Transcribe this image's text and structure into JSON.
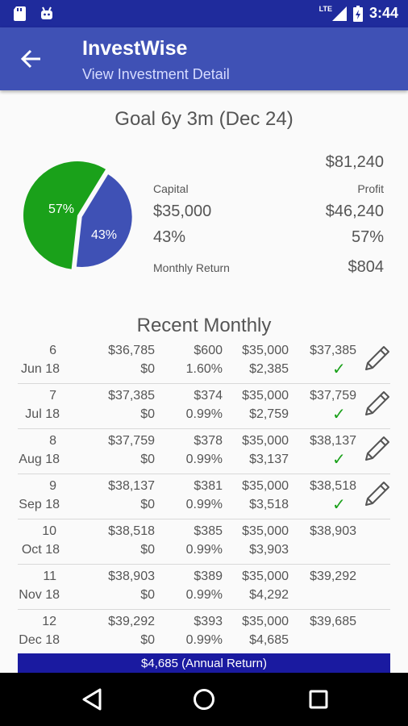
{
  "status_bar": {
    "time": "3:44",
    "network": "LTE"
  },
  "app_bar": {
    "title": "InvestWise",
    "subtitle": "View Investment Detail"
  },
  "summary": {
    "goal": "Goal 6y 3m (Dec 24)",
    "total": "$81,240",
    "capital_label": "Capital",
    "profit_label": "Profit",
    "capital_value": "$35,000",
    "profit_value": "$46,240",
    "capital_pct": "43%",
    "profit_pct": "57%",
    "monthly_return_label": "Monthly Return",
    "monthly_return_value": "$804",
    "pie": {
      "profit_label": "57%",
      "capital_label": "43%",
      "profit_color": "#1aa11a",
      "capital_color": "#3f51b5"
    }
  },
  "recent": {
    "title": "Recent Monthly",
    "rows": [
      {
        "num": "6",
        "month": "Jun 18",
        "start": "$36,785",
        "deposit": "$0",
        "interest": "$600",
        "rate": "1.60%",
        "capital": "$35,000",
        "profit": "$2,385",
        "end": "$37,385",
        "confirmed": true
      },
      {
        "num": "7",
        "month": "Jul 18",
        "start": "$37,385",
        "deposit": "$0",
        "interest": "$374",
        "rate": "0.99%",
        "capital": "$35,000",
        "profit": "$2,759",
        "end": "$37,759",
        "confirmed": true
      },
      {
        "num": "8",
        "month": "Aug 18",
        "start": "$37,759",
        "deposit": "$0",
        "interest": "$378",
        "rate": "0.99%",
        "capital": "$35,000",
        "profit": "$3,137",
        "end": "$38,137",
        "confirmed": true
      },
      {
        "num": "9",
        "month": "Sep 18",
        "start": "$38,137",
        "deposit": "$0",
        "interest": "$381",
        "rate": "0.99%",
        "capital": "$35,000",
        "profit": "$3,518",
        "end": "$38,518",
        "confirmed": true
      },
      {
        "num": "10",
        "month": "Oct 18",
        "start": "$38,518",
        "deposit": "$0",
        "interest": "$385",
        "rate": "0.99%",
        "capital": "$35,000",
        "profit": "$3,903",
        "end": "$38,903",
        "confirmed": false
      },
      {
        "num": "11",
        "month": "Nov 18",
        "start": "$38,903",
        "deposit": "$0",
        "interest": "$389",
        "rate": "0.99%",
        "capital": "$35,000",
        "profit": "$4,292",
        "end": "$39,292",
        "confirmed": false
      },
      {
        "num": "12",
        "month": "Dec 18",
        "start": "$39,292",
        "deposit": "$0",
        "interest": "$393",
        "rate": "0.99%",
        "capital": "$35,000",
        "profit": "$4,685",
        "end": "$39,685",
        "confirmed": false
      }
    ],
    "check_mark": "✓",
    "annual_return": "$4,685 (Annual Return)"
  }
}
